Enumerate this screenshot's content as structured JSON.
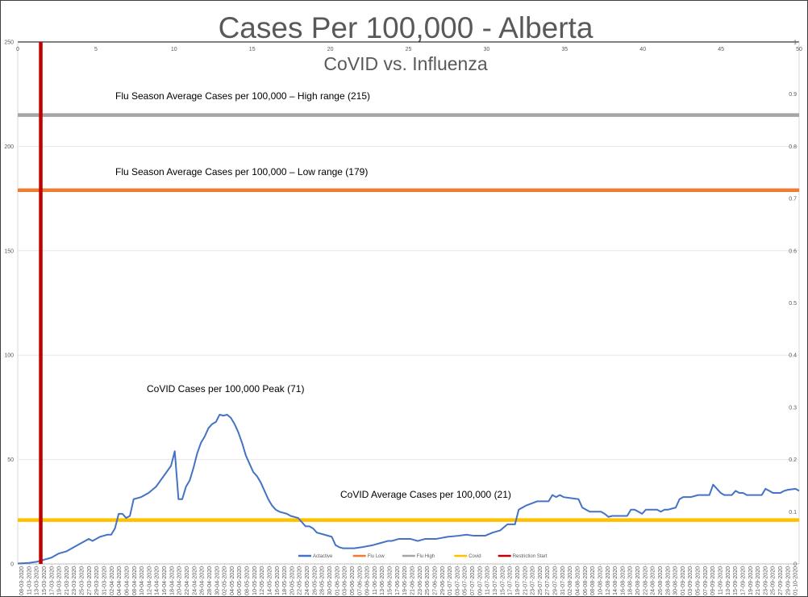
{
  "chart_data": {
    "type": "line",
    "title": "Cases Per 100,000 - Alberta",
    "subtitle": "CoVID vs. Influenza",
    "ylim": [
      0,
      250
    ],
    "y_ticks": [
      "0",
      "50",
      "100",
      "150",
      "200",
      "250"
    ],
    "top_axis_ticks": [
      "0",
      "5",
      "10",
      "15",
      "20",
      "25",
      "30",
      "35",
      "40",
      "45",
      "50"
    ],
    "top_axis_range": [
      0,
      50
    ],
    "right_axis_ticks": [
      "0",
      "0.1",
      "0.2",
      "0.3",
      "0.4",
      "0.5",
      "0.6",
      "0.7",
      "0.8",
      "0.9",
      "1"
    ],
    "right_axis_range": [
      0,
      1
    ],
    "x_dates": [
      "08-03-2020",
      "11-03-2020",
      "13-03-2020",
      "15-03-2020",
      "17-03-2020",
      "19-03-2020",
      "21-03-2020",
      "23-03-2020",
      "25-03-2020",
      "27-03-2020",
      "29-03-2020",
      "31-03-2020",
      "02-04-2020",
      "04-04-2020",
      "06-04-2020",
      "08-04-2020",
      "10-04-2020",
      "12-04-2020",
      "14-04-2020",
      "16-04-2020",
      "18-04-2020",
      "20-04-2020",
      "22-04-2020",
      "24-04-2020",
      "26-04-2020",
      "28-04-2020",
      "30-04-2020",
      "02-05-2020",
      "04-05-2020",
      "06-05-2020",
      "08-05-2020",
      "10-05-2020",
      "12-05-2020",
      "14-05-2020",
      "16-05-2020",
      "18-05-2020",
      "20-05-2020",
      "22-05-2020",
      "24-05-2020",
      "26-05-2020",
      "28-05-2020",
      "30-05-2020",
      "01-06-2020",
      "03-06-2020",
      "05-06-2020",
      "07-06-2020",
      "09-06-2020",
      "11-06-2020",
      "13-06-2020",
      "15-06-2020",
      "17-06-2020",
      "19-06-2020",
      "21-06-2020",
      "23-06-2020",
      "25-06-2020",
      "27-06-2020",
      "29-06-2020",
      "01-07-2020",
      "03-07-2020",
      "05-07-2020",
      "07-07-2020",
      "09-07-2020",
      "11-07-2020",
      "13-07-2020",
      "15-07-2020",
      "17-07-2020",
      "19-07-2020",
      "21-07-2020",
      "23-07-2020",
      "25-07-2020",
      "27-07-2020",
      "29-07-2020",
      "31-07-2020",
      "02-08-2020",
      "04-08-2020",
      "06-08-2020",
      "08-08-2020",
      "10-08-2020",
      "12-08-2020",
      "14-08-2020",
      "16-08-2020",
      "18-08-2020",
      "20-08-2020",
      "22-08-2020",
      "24-08-2020",
      "26-08-2020",
      "28-08-2020",
      "30-08-2020",
      "01-09-2020",
      "03-09-2020",
      "05-09-2020",
      "07-09-2020",
      "09-09-2020",
      "11-09-2020",
      "13-09-2020",
      "15-09-2020",
      "17-09-2020",
      "19-09-2020",
      "21-09-2020",
      "23-09-2020",
      "25-09-2020",
      "27-09-2020",
      "29-09-2020",
      "01-10-2020"
    ],
    "series": [
      {
        "name": "Actactive",
        "color": "#4472C4",
        "points": [
          [
            0,
            0.2
          ],
          [
            3,
            0.5
          ],
          [
            5,
            1
          ],
          [
            7,
            2
          ],
          [
            9,
            3
          ],
          [
            11,
            5
          ],
          [
            13,
            6
          ],
          [
            15,
            8
          ],
          [
            17,
            10
          ],
          [
            19,
            12
          ],
          [
            20,
            11
          ],
          [
            22,
            13
          ],
          [
            24,
            14
          ],
          [
            25,
            14
          ],
          [
            26,
            17
          ],
          [
            27,
            24
          ],
          [
            28,
            24
          ],
          [
            29,
            22
          ],
          [
            30,
            23
          ],
          [
            31,
            31
          ],
          [
            33,
            32
          ],
          [
            35,
            34
          ],
          [
            37,
            37
          ],
          [
            39,
            42
          ],
          [
            41,
            47
          ],
          [
            42,
            54
          ],
          [
            43,
            31
          ],
          [
            44,
            31
          ],
          [
            45,
            37
          ],
          [
            46,
            40
          ],
          [
            47,
            46
          ],
          [
            48,
            53
          ],
          [
            49,
            58
          ],
          [
            50,
            61
          ],
          [
            51,
            65
          ],
          [
            52,
            67
          ],
          [
            53,
            68
          ],
          [
            54,
            71.5
          ],
          [
            55,
            71
          ],
          [
            56,
            71.5
          ],
          [
            57,
            70
          ],
          [
            58,
            67
          ],
          [
            59,
            63
          ],
          [
            60,
            58
          ],
          [
            61,
            52
          ],
          [
            62,
            48
          ],
          [
            63,
            44
          ],
          [
            64,
            42
          ],
          [
            65,
            39
          ],
          [
            66,
            35
          ],
          [
            67,
            31
          ],
          [
            68,
            28
          ],
          [
            69,
            26
          ],
          [
            70,
            25
          ],
          [
            72,
            24
          ],
          [
            73,
            23
          ],
          [
            75,
            22
          ],
          [
            76,
            20
          ],
          [
            77,
            18
          ],
          [
            78,
            18
          ],
          [
            79,
            17
          ],
          [
            80,
            15
          ],
          [
            82,
            14
          ],
          [
            84,
            13
          ],
          [
            85,
            9
          ],
          [
            86,
            8
          ],
          [
            87,
            7.5
          ],
          [
            90,
            7.5
          ],
          [
            92,
            8
          ],
          [
            95,
            9
          ],
          [
            97,
            10
          ],
          [
            99,
            11
          ],
          [
            100,
            11
          ],
          [
            102,
            12
          ],
          [
            105,
            12
          ],
          [
            107,
            11
          ],
          [
            109,
            12
          ],
          [
            112,
            12
          ],
          [
            115,
            13
          ],
          [
            118,
            13.5
          ],
          [
            120,
            14
          ],
          [
            122,
            13.5
          ],
          [
            125,
            13.5
          ],
          [
            127,
            15
          ],
          [
            129,
            16
          ],
          [
            131,
            19
          ],
          [
            133,
            19
          ],
          [
            134,
            26
          ],
          [
            136,
            28
          ],
          [
            139,
            30
          ],
          [
            142,
            30
          ],
          [
            143,
            33
          ],
          [
            144,
            32
          ],
          [
            145,
            33
          ],
          [
            146,
            32
          ],
          [
            150,
            31
          ],
          [
            151,
            27
          ],
          [
            152,
            26
          ],
          [
            153,
            25
          ],
          [
            154,
            25
          ],
          [
            156,
            25
          ],
          [
            157,
            24
          ],
          [
            158,
            22.5
          ],
          [
            159,
            23
          ],
          [
            161,
            23
          ],
          [
            163,
            23
          ],
          [
            164,
            26
          ],
          [
            165,
            26
          ],
          [
            166,
            25
          ],
          [
            167,
            24
          ],
          [
            168,
            26
          ],
          [
            171,
            26
          ],
          [
            172,
            25
          ],
          [
            173,
            26
          ],
          [
            174,
            26
          ],
          [
            176,
            27
          ],
          [
            177,
            31
          ],
          [
            178,
            32
          ],
          [
            180,
            32
          ],
          [
            182,
            33
          ],
          [
            185,
            33
          ],
          [
            186,
            38
          ],
          [
            187,
            36
          ],
          [
            188,
            34
          ],
          [
            189,
            33
          ],
          [
            191,
            33
          ],
          [
            192,
            35
          ],
          [
            193,
            34
          ],
          [
            194,
            34
          ],
          [
            195,
            33
          ],
          [
            196,
            33
          ],
          [
            198,
            33
          ],
          [
            199,
            33
          ],
          [
            200,
            36
          ],
          [
            201,
            35
          ],
          [
            202,
            34
          ],
          [
            204,
            34
          ],
          [
            205,
            35
          ],
          [
            206,
            35.5
          ],
          [
            208,
            36
          ],
          [
            209,
            35
          ]
        ],
        "point_count": 210
      },
      {
        "name": "Flu Low",
        "color": "#ED7D31",
        "value": 179
      },
      {
        "name": "Flu High",
        "color": "#A5A5A5",
        "value": 215
      },
      {
        "name": "Covid",
        "color": "#FFC000",
        "value": 21
      },
      {
        "name": "Restriction Start",
        "color": "#C00000",
        "x_index": 4
      }
    ],
    "legend": [
      "Actactive",
      "Flu Low",
      "Flu High",
      "Covid",
      "Restriction Start"
    ],
    "legend_placement": "bottom-center",
    "annotations": {
      "flu_high": "Flu Season Average Cases per 100,000 – High range (215)",
      "flu_low": "Flu Season Average Cases per 100,000 – Low range (179)",
      "covid_peak": "CoVID Cases per 100,000 Peak (71)",
      "covid_avg": "CoVID Average Cases per 100,000 (21)"
    },
    "grid": "horizontal"
  }
}
